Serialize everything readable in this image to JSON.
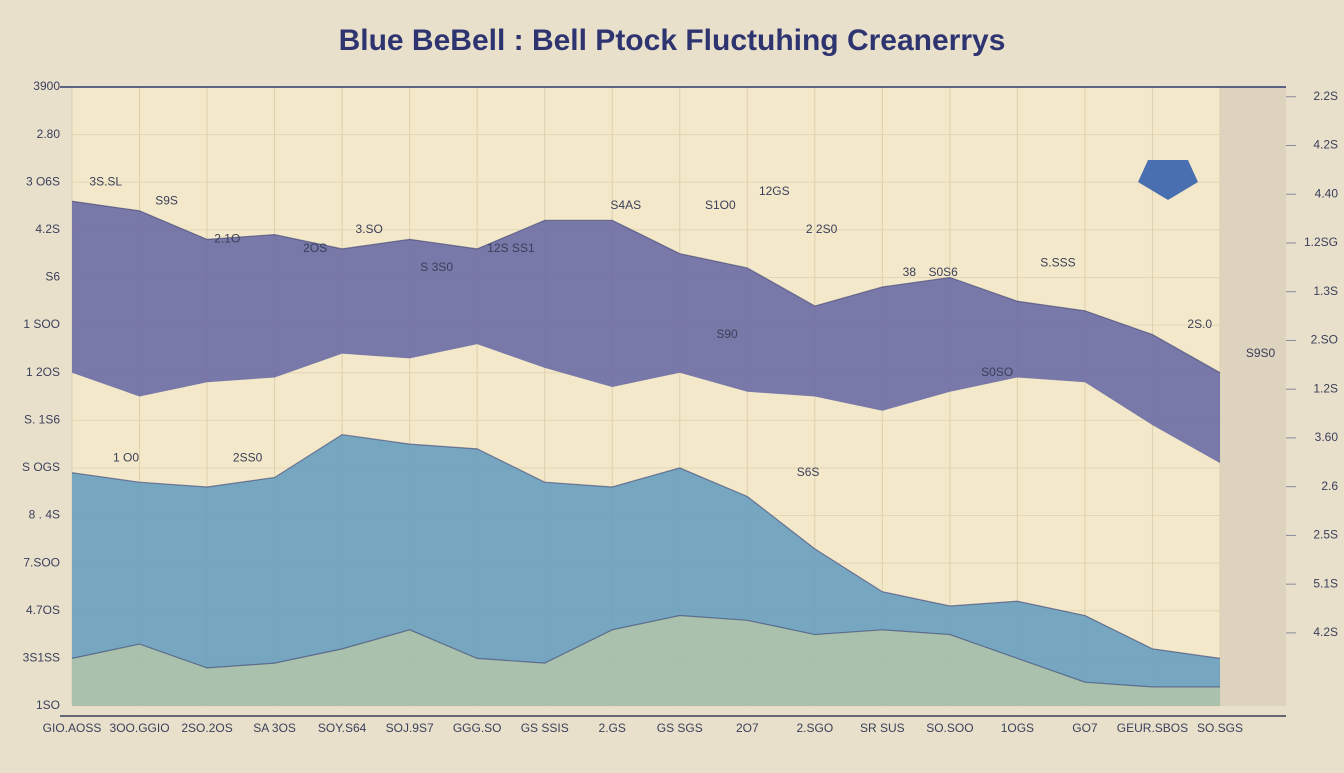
{
  "chart_data": {
    "type": "area",
    "title": "Blue BeBell : Bell Ptock Fluctuhing Creanerrys",
    "categories": [
      "GIO.AOSS",
      "3OO.GGIO",
      "2SO.2OS",
      "SA 3OS",
      "SOY.S64",
      "SOJ.9S7",
      "GGG.SO",
      "GS SSIS",
      "2.GS",
      "GS SGS",
      "2O7",
      "2.SGO",
      "SR SUS",
      "SO.SOO",
      "1OGS",
      "GO7",
      "GEUR.SBOS",
      "SO.SGS"
    ],
    "series": [
      {
        "color": "#6e6ea6",
        "values": [
          10.6,
          10.4,
          9.8,
          9.9,
          9.6,
          9.8,
          9.6,
          10.2,
          10.2,
          9.5,
          9.2,
          8.4,
          8.8,
          9.0,
          8.5,
          8.3,
          7.8,
          7.0
        ],
        "base": [
          7.0,
          6.5,
          6.8,
          6.9,
          7.4,
          7.3,
          7.6,
          7.1,
          6.7,
          7.0,
          6.6,
          6.5,
          6.2,
          6.6,
          6.9,
          6.8,
          5.9,
          5.1
        ]
      },
      {
        "color": "#6c9fc0",
        "values": [
          4.9,
          4.7,
          4.6,
          4.8,
          5.7,
          5.5,
          5.4,
          4.7,
          4.6,
          5.0,
          4.4,
          3.3,
          2.4,
          2.1,
          2.2,
          1.9,
          1.2,
          1.0
        ]
      },
      {
        "color": "#b9c9a6",
        "values": [
          1.0,
          1.3,
          0.8,
          0.9,
          1.2,
          1.6,
          1.0,
          0.9,
          1.6,
          1.9,
          1.8,
          1.5,
          1.6,
          1.5,
          1.0,
          0.5,
          0.4,
          0.4
        ]
      }
    ],
    "ylim": [
      0,
      13
    ],
    "yticks": [
      {
        "value": 13,
        "label": "3900"
      },
      {
        "value": 12,
        "label": "2.80"
      },
      {
        "value": 11,
        "label": "3 O6S"
      },
      {
        "value": 10,
        "label": "4.2S"
      },
      {
        "value": 9,
        "label": "S6"
      },
      {
        "value": 8,
        "label": "1 SOO"
      },
      {
        "value": 7,
        "label": "1 2OS"
      },
      {
        "value": 6,
        "label": "S. 1S6"
      },
      {
        "value": 5,
        "label": "S OGS"
      },
      {
        "value": 4,
        "label": "8 . 4S"
      },
      {
        "value": 3,
        "label": "7.SOO"
      },
      {
        "value": 2,
        "label": "4.7OS"
      },
      {
        "value": 1,
        "label": "3S1SS"
      },
      {
        "value": 0,
        "label": "1SO"
      }
    ],
    "y2lim": [
      -1.5,
      11.2
    ],
    "y2ticks": [
      {
        "value": 11,
        "label": "2.2S"
      },
      {
        "value": 10,
        "label": "4.2S"
      },
      {
        "value": 9,
        "label": "4.40"
      },
      {
        "value": 8,
        "label": "1.2SG"
      },
      {
        "value": 7,
        "label": "1.3S"
      },
      {
        "value": 6,
        "label": "2.SO"
      },
      {
        "value": 5,
        "label": "1.2S"
      },
      {
        "value": 4,
        "label": "3.60"
      },
      {
        "value": 3,
        "label": "2.6"
      },
      {
        "value": 2,
        "label": "2.5S"
      },
      {
        "value": 1,
        "label": "5.1S"
      },
      {
        "value": 0,
        "label": "4.2S"
      }
    ],
    "grid": true,
    "annotations": [
      {
        "text": "3S.SL",
        "x": 0.5,
        "y": 11.0
      },
      {
        "text": "S9S",
        "x": 1.4,
        "y": 10.6
      },
      {
        "text": "2.1O",
        "x": 2.3,
        "y": 9.8
      },
      {
        "text": "3.SO",
        "x": 4.4,
        "y": 10.0
      },
      {
        "text": "2OS",
        "x": 3.6,
        "y": 9.6
      },
      {
        "text": "S 3S0",
        "x": 5.4,
        "y": 9.2
      },
      {
        "text": "12S SS1",
        "x": 6.5,
        "y": 9.6
      },
      {
        "text": "S4AS",
        "x": 8.2,
        "y": 10.5
      },
      {
        "text": "S1O0",
        "x": 9.6,
        "y": 10.5
      },
      {
        "text": "12GS",
        "x": 10.4,
        "y": 10.8
      },
      {
        "text": "2 2S0",
        "x": 11.1,
        "y": 10.0
      },
      {
        "text": "38",
        "x": 12.4,
        "y": 9.1
      },
      {
        "text": "S0S6",
        "x": 12.9,
        "y": 9.1
      },
      {
        "text": "S.SSS",
        "x": 14.6,
        "y": 9.3
      },
      {
        "text": "2S.0",
        "x": 16.7,
        "y": 8.0
      },
      {
        "text": "S9S0",
        "x": 17.6,
        "y": 7.4
      },
      {
        "text": "S90",
        "x": 9.7,
        "y": 7.8
      },
      {
        "text": "S0SO",
        "x": 13.7,
        "y": 7.0
      },
      {
        "text": "1 O0",
        "x": 0.8,
        "y": 5.2
      },
      {
        "text": "2SS0",
        "x": 2.6,
        "y": 5.2
      },
      {
        "text": "S6S",
        "x": 10.9,
        "y": 4.9
      }
    ]
  }
}
